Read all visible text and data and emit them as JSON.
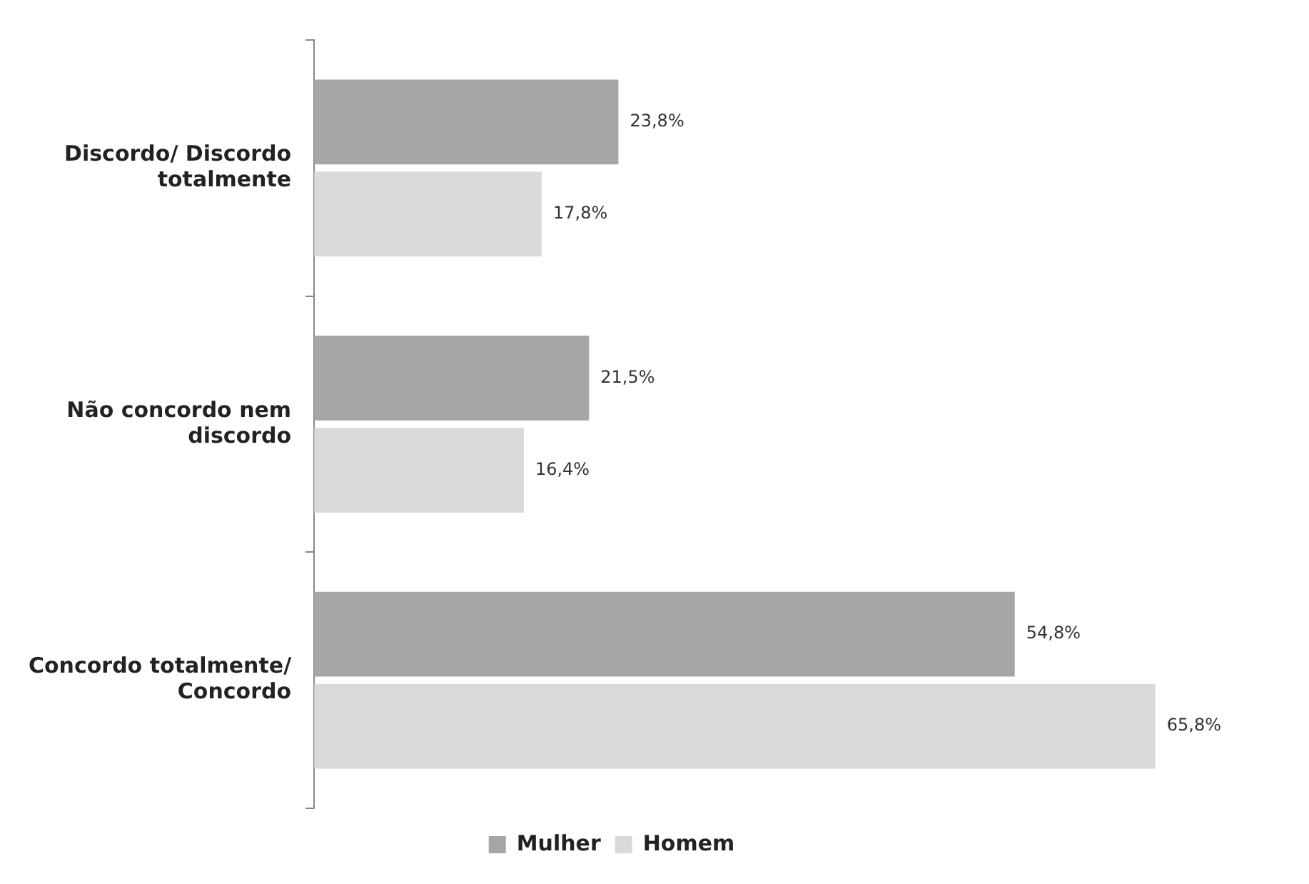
{
  "chart_data": {
    "type": "bar",
    "orientation": "horizontal",
    "categories": [
      "Discordo/ Discordo totalmente",
      "Não concordo nem discordo",
      "Concordo totalmente/ Concordo"
    ],
    "series": [
      {
        "name": "Mulher",
        "color": "#a6a6a6",
        "values": [
          23.8,
          21.5,
          54.8
        ],
        "value_labels": [
          "23,8%",
          "21,5%",
          "54,8%"
        ]
      },
      {
        "name": "Homem",
        "color": "#d9d9d9",
        "values": [
          17.8,
          16.4,
          65.8
        ],
        "value_labels": [
          "17,8%",
          "16,4%",
          "65,8%"
        ]
      }
    ],
    "legend": "bottom",
    "grid": false
  }
}
